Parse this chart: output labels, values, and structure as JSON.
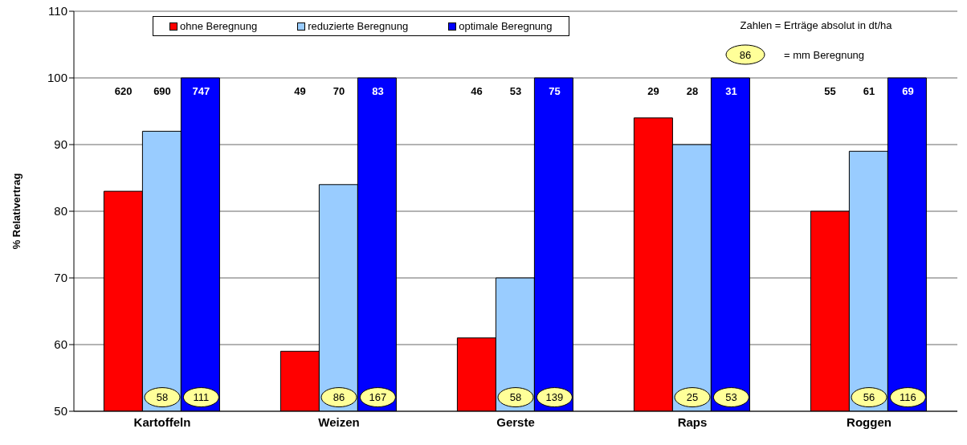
{
  "chart_data": {
    "type": "bar",
    "ylabel": "% Relativertrag",
    "categories": [
      "Kartoffeln",
      "Weizen",
      "Gerste",
      "Raps",
      "Roggen"
    ],
    "series": [
      {
        "name": "ohne Beregnung",
        "color": "#ff0000",
        "values": [
          83,
          59,
          61,
          94,
          80
        ]
      },
      {
        "name": "reduzierte Beregnung",
        "color": "#99ccff",
        "values": [
          92,
          84,
          70,
          90,
          89
        ]
      },
      {
        "name": "optimale Beregnung",
        "color": "#0000ff",
        "values": [
          100,
          100,
          100,
          100,
          100
        ]
      }
    ],
    "ylim": [
      50,
      110
    ],
    "yticks": [
      50,
      60,
      70,
      80,
      90,
      100,
      110
    ],
    "grid": "y",
    "legend": "top left",
    "annotations": [
      "Zahlen = Erträge absolut in dt/ha",
      "86",
      "= mm Beregnung",
      "620",
      "690",
      "747",
      "49",
      "70",
      "83",
      "46",
      "53",
      "75",
      "29",
      "28",
      "31",
      "55",
      "61",
      "69",
      "58",
      "111",
      "86",
      "167",
      "58",
      "139",
      "25",
      "53",
      "56",
      "116"
    ]
  }
}
